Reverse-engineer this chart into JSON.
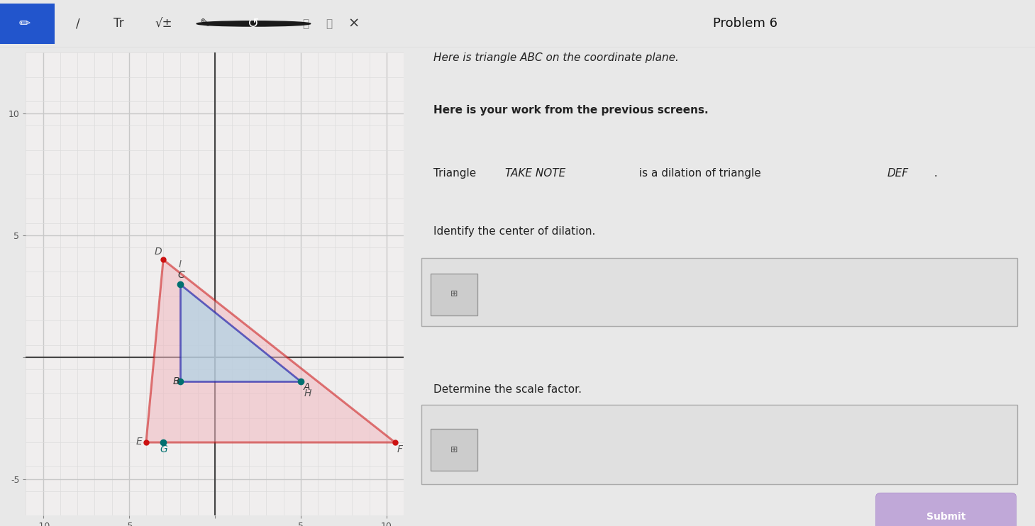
{
  "title": "Problem 6",
  "text_line1": "Here is triangle ABC on the coordinate plane.",
  "text_line2": "Here is your work from the previous screens.",
  "text_line3_pre": "Triangle ",
  "text_line3_italic": "TAKE NOTE",
  "text_line3_mid": " is a dilation of triangle ",
  "text_line3_italic2": "DEF",
  "text_line3_end": " .",
  "text_line4": "Identify the center of dilation.",
  "text_line5": "Determine the scale factor.",
  "submit_text": "Submit",
  "xlim": [
    -11,
    11
  ],
  "ylim": [
    -6.5,
    12
  ],
  "xticks": [
    -10,
    -5,
    0,
    5,
    10
  ],
  "yticks": [
    -5,
    0,
    5,
    10
  ],
  "plot_bg": "#f0eeee",
  "grid_major_color": "#c8c8c8",
  "grid_minor_color": "#dcdcdc",
  "axis_color": "#444444",
  "triangle_DEF": {
    "D": [
      -3,
      4
    ],
    "E": [
      -4,
      -3.5
    ],
    "F": [
      10.5,
      -3.5
    ],
    "fill_color": "#f0b8c0",
    "fill_alpha": 0.55,
    "edge_color": "#cc1111",
    "edge_width": 2.2
  },
  "triangle_ABC": {
    "C": [
      -2,
      3
    ],
    "B": [
      -2,
      -1
    ],
    "A": [
      5,
      -1
    ],
    "fill_color": "#aad4e8",
    "fill_alpha": 0.65,
    "edge_color": "#1a1aaa",
    "edge_width": 2.0
  },
  "teal_color": "#007070",
  "bg_left": "#e8e8e8",
  "bg_right": "#eeeeee",
  "toolbar_bg": "#ffffff",
  "input_box_bg": "#e0e0e0",
  "input_box_border": "#aaaaaa",
  "submit_btn_bg": "#c0a8d8",
  "submit_btn_text_color": "#ffffff",
  "tick_fontsize": 9,
  "label_fontsize": 10,
  "text_fontsize": 11,
  "title_fontsize": 13
}
